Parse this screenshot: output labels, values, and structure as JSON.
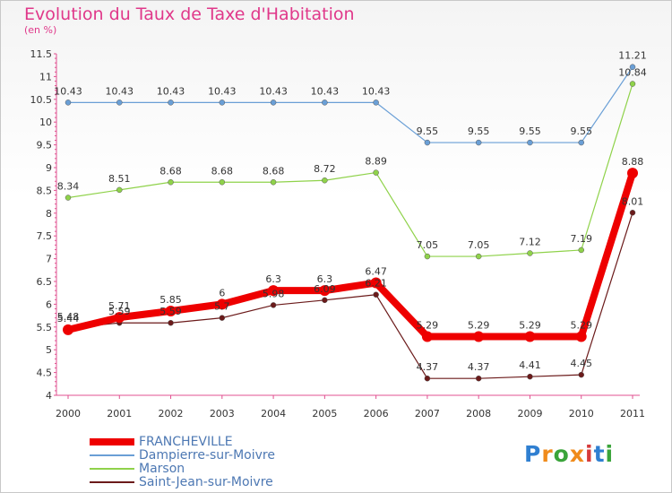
{
  "chart_data": {
    "type": "line",
    "title": "Evolution du Taux de Taxe d'Habitation",
    "subtitle": "(en %)",
    "xlabel": "",
    "ylabel": "",
    "x": [
      "2000",
      "2001",
      "2002",
      "2003",
      "2004",
      "2005",
      "2006",
      "2007",
      "2008",
      "2009",
      "2010",
      "2011"
    ],
    "ylim": [
      4,
      11.5
    ],
    "yticks": [
      "4",
      "4.5",
      "5",
      "5.5",
      "6",
      "6.5",
      "7",
      "7.5",
      "8",
      "8.5",
      "9",
      "9.5",
      "10",
      "10.5",
      "11",
      "11.5"
    ],
    "grid": false,
    "legend_position": "bottom-left",
    "series": [
      {
        "name": "FRANCHEVILLE",
        "color": "#ee0000",
        "values": [
          5.44,
          5.71,
          5.85,
          6.0,
          6.3,
          6.3,
          6.47,
          5.29,
          5.29,
          5.29,
          5.29,
          8.88
        ],
        "labels": [
          "5.44",
          "5.71",
          "5.85",
          "6",
          "6.3",
          "6.3",
          "6.47",
          "5.29",
          "5.29",
          "5.29",
          "5.29",
          "8.88"
        ]
      },
      {
        "name": "Dampierre-sur-Moivre",
        "color": "#6a9fd6",
        "values": [
          10.43,
          10.43,
          10.43,
          10.43,
          10.43,
          10.43,
          10.43,
          9.55,
          9.55,
          9.55,
          9.55,
          11.21
        ],
        "labels": [
          "10.43",
          "10.43",
          "10.43",
          "10.43",
          "10.43",
          "10.43",
          "10.43",
          "9.55",
          "9.55",
          "9.55",
          "9.55",
          "11.21"
        ]
      },
      {
        "name": "Marson",
        "color": "#8fd24a",
        "values": [
          8.34,
          8.51,
          8.68,
          8.68,
          8.68,
          8.72,
          8.89,
          7.05,
          7.05,
          7.12,
          7.19,
          10.84
        ],
        "labels": [
          "8.34",
          "8.51",
          "8.68",
          "8.68",
          "8.68",
          "8.72",
          "8.89",
          "7.05",
          "7.05",
          "7.12",
          "7.19",
          "10.84"
        ]
      },
      {
        "name": "Saint-Jean-sur-Moivre",
        "color": "#6b1a1a",
        "values": [
          5.48,
          5.59,
          5.59,
          5.7,
          5.98,
          6.09,
          6.21,
          4.37,
          4.37,
          4.41,
          4.45,
          8.01
        ],
        "labels": [
          "5.48",
          "5.59",
          "5.59",
          "5.7",
          "5.98",
          "6.09",
          "6.21",
          "4.37",
          "4.37",
          "4.41",
          "4.45",
          "8.01"
        ]
      }
    ]
  },
  "logo": {
    "letters": [
      "P",
      "r",
      "o",
      "x",
      "i",
      "t",
      "i"
    ],
    "colors": [
      "#2f7fd1",
      "#f08b1c",
      "#3aa43a",
      "#f08b1c",
      "#d63b3b",
      "#2f7fd1",
      "#3aa43a"
    ]
  }
}
